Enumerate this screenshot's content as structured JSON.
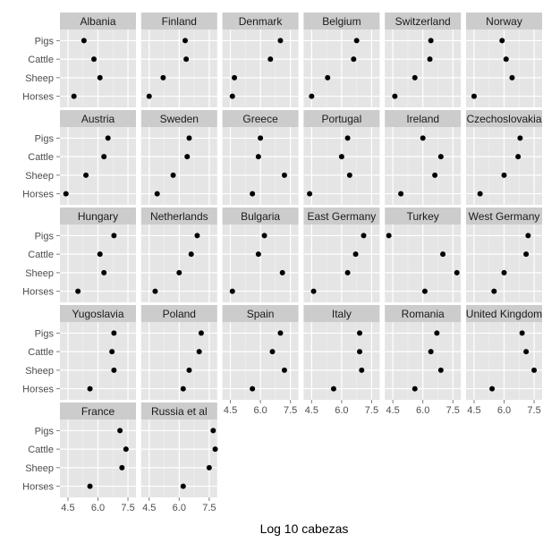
{
  "chart_data": {
    "type": "scatter",
    "facet": "country",
    "xlabel": "Log 10 cabezas",
    "ylabel": "",
    "xlim": [
      4.1,
      7.9
    ],
    "x_ticks": [
      4.5,
      6.0,
      7.5
    ],
    "x_minor_ticks": [
      5.25,
      6.75
    ],
    "x_tick_labels": [
      "4.5",
      "6.0",
      "7.5"
    ],
    "categories": [
      "Pigs",
      "Cattle",
      "Sheep",
      "Horses"
    ],
    "grid": true,
    "legend": "none",
    "colors": {
      "panel_bg": "#e5e5e5",
      "strip_bg": "#cccccc",
      "grid": "#ffffff",
      "point": "#000000"
    },
    "panels": [
      {
        "country": "Albania",
        "values": [
          5.3,
          5.8,
          6.1,
          4.8
        ]
      },
      {
        "country": "Finland",
        "values": [
          6.3,
          6.35,
          5.2,
          4.5
        ]
      },
      {
        "country": "Denmark",
        "values": [
          7.0,
          6.5,
          4.7,
          4.6
        ]
      },
      {
        "country": "Belgium",
        "values": [
          6.75,
          6.6,
          5.3,
          4.5
        ]
      },
      {
        "country": "Switzerland",
        "values": [
          6.4,
          6.35,
          5.6,
          4.6
        ]
      },
      {
        "country": "Norway",
        "values": [
          5.9,
          6.1,
          6.4,
          4.5
        ]
      },
      {
        "country": "Austria",
        "values": [
          6.5,
          6.3,
          5.4,
          4.4
        ]
      },
      {
        "country": "Sweden",
        "values": [
          6.5,
          6.4,
          5.7,
          4.9
        ]
      },
      {
        "country": "Greece",
        "values": [
          6.0,
          5.9,
          7.2,
          5.6
        ]
      },
      {
        "country": "Portugal",
        "values": [
          6.3,
          6.0,
          6.4,
          4.4
        ]
      },
      {
        "country": "Ireland",
        "values": [
          6.0,
          6.9,
          6.6,
          4.9
        ]
      },
      {
        "country": "Czechoslovakia",
        "values": [
          6.8,
          6.7,
          6.0,
          4.8
        ]
      },
      {
        "country": "Hungary",
        "values": [
          6.8,
          6.1,
          6.3,
          5.0
        ]
      },
      {
        "country": "Netherlands",
        "values": [
          6.9,
          6.6,
          6.0,
          4.8
        ]
      },
      {
        "country": "Bulgaria",
        "values": [
          6.2,
          5.9,
          7.1,
          4.6
        ]
      },
      {
        "country": "East Germany",
        "values": [
          7.1,
          6.7,
          6.3,
          4.6
        ]
      },
      {
        "country": "Turkey",
        "values": [
          4.3,
          7.0,
          7.7,
          6.1
        ]
      },
      {
        "country": "West Germany",
        "values": [
          7.2,
          7.1,
          6.0,
          5.5
        ]
      },
      {
        "country": "Yugoslavia",
        "values": [
          6.8,
          6.7,
          6.8,
          5.6
        ]
      },
      {
        "country": "Poland",
        "values": [
          7.1,
          7.0,
          6.5,
          6.2
        ]
      },
      {
        "country": "Spain",
        "values": [
          7.0,
          6.6,
          7.2,
          5.6
        ]
      },
      {
        "country": "Italy",
        "values": [
          6.9,
          6.9,
          7.0,
          5.6
        ]
      },
      {
        "country": "Romania",
        "values": [
          6.7,
          6.4,
          6.9,
          5.6
        ]
      },
      {
        "country": "United Kingdom",
        "values": [
          6.9,
          7.1,
          7.5,
          5.4
        ]
      },
      {
        "country": "France",
        "values": [
          7.1,
          7.4,
          7.2,
          5.6
        ]
      },
      {
        "country": "Russia et al",
        "values": [
          7.7,
          7.8,
          7.5,
          6.2
        ]
      }
    ]
  }
}
